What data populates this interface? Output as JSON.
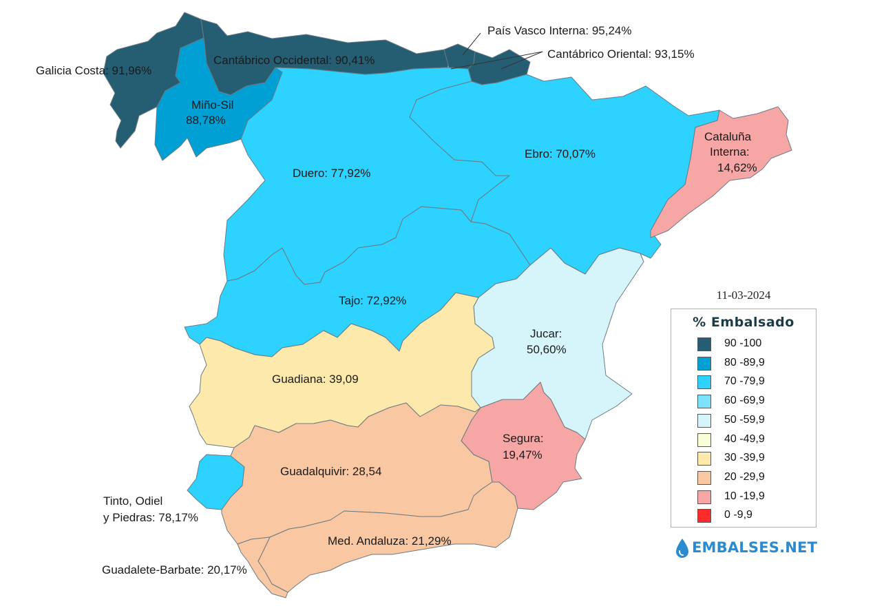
{
  "date": "11-03-2024",
  "legend": {
    "title": "% Embalsado",
    "items": [
      {
        "label": "90 -100",
        "color": "#255e72"
      },
      {
        "label": "80 -89,9",
        "color": "#009fd4"
      },
      {
        "label": "70 -79,9",
        "color": "#2dd2ff"
      },
      {
        "label": "60 -69,9",
        "color": "#7fe2fb"
      },
      {
        "label": "50 -59,9",
        "color": "#d6f5fb"
      },
      {
        "label": "40 -49,9",
        "color": "#fafdd8"
      },
      {
        "label": "30 -39,9",
        "color": "#fde9ab"
      },
      {
        "label": "20 -29,9",
        "color": "#f9c7a2"
      },
      {
        "label": "10 -19,9",
        "color": "#f7a6a6"
      },
      {
        "label": "0 -9,9",
        "color": "#ff2a2a"
      }
    ]
  },
  "basins": {
    "galicia": {
      "label": "Galicia Costa: 91,96%",
      "value": 91.96,
      "color": "#255e72"
    },
    "cant_occ": {
      "label": "Cantábrico Occidental: 90,41%",
      "value": 90.41,
      "color": "#255e72"
    },
    "pais_vasco": {
      "label": "País Vasco Interna: 95,24%",
      "value": 95.24,
      "color": "#255e72"
    },
    "cant_ori": {
      "label": "Cantábrico Oriental: 93,15%",
      "value": 93.15,
      "color": "#255e72"
    },
    "mino": {
      "line1": "Miño-Sil",
      "line2": "88,78%",
      "value": 88.78,
      "color": "#009fd4"
    },
    "duero": {
      "label": "Duero: 77,92%",
      "value": 77.92,
      "color": "#2dd2ff"
    },
    "ebro": {
      "label": "Ebro: 70,07%",
      "value": 70.07,
      "color": "#2dd2ff"
    },
    "cataluna": {
      "line1": "Cataluña",
      "line2": "Interna:",
      "line3": "14,62%",
      "value": 14.62,
      "color": "#f7a6a6"
    },
    "tajo": {
      "label": "Tajo: 72,92%",
      "value": 72.92,
      "color": "#2dd2ff"
    },
    "jucar": {
      "line1": "Jucar:",
      "line2": "50,60%",
      "value": 50.6,
      "color": "#d6f5fb"
    },
    "guadiana": {
      "label": "Guadiana: 39,09",
      "value": 39.09,
      "color": "#fde9ab"
    },
    "segura": {
      "line1": "Segura:",
      "line2": "19,47%",
      "value": 19.47,
      "color": "#f7a6a6"
    },
    "guadalquivir": {
      "label": "Guadalquivir: 28,54",
      "value": 28.54,
      "color": "#f9c7a2"
    },
    "tinto": {
      "line1": "Tinto, Odiel",
      "line2": "y Piedras: 78,17%",
      "value": 78.17,
      "color": "#2dd2ff"
    },
    "med_andaluza": {
      "label": "Med. Andaluza: 21,29%",
      "value": 21.29,
      "color": "#f9c7a2"
    },
    "guadalete": {
      "label": "Guadalete-Barbate: 20,17%",
      "value": 20.17,
      "color": "#f9c7a2"
    }
  },
  "brand": {
    "text": "EMBALSES.NET",
    "color": "#2a8bd0",
    "icon": "water-drop-icon"
  }
}
